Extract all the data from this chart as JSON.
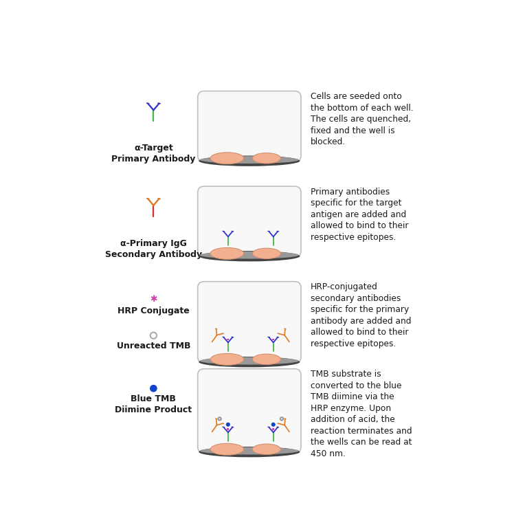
{
  "background_color": "#ffffff",
  "rows": [
    {
      "icon_label": "α-Target\nPrimary Antibody",
      "description": "Cells are seeded onto\nthe bottom of each well.\nThe cells are quenched,\nfixed and the well is\nblocked.",
      "well_content": "cells_only"
    },
    {
      "icon_label": "α-Primary IgG\nSecondary Antibody",
      "description": "Primary antibodies\nspecific for the target\nantigen are added and\nallowed to bind to their\nrespective epitopes.",
      "well_content": "primary_antibody"
    },
    {
      "icon_label_1": "HRP Conjugate",
      "icon_label_2": "Unreacted TMB",
      "description": "HRP-conjugated\nsecondary antibodies\nspecific for the primary\nantibody are added and\nallowed to bind to their\nrespective epitopes.",
      "well_content": "hrp_conjugate"
    },
    {
      "icon_label_1": "Blue TMB\nDiimine Product",
      "description": "TMB substrate is\nconverted to the blue\nTMB diimine via the\nHRP enzyme. Upon\naddition of acid, the\nreaction terminates and\nthe wells can be read at\n450 nm.",
      "well_content": "blue_tmb"
    }
  ],
  "well_bg": "#f8f8f8",
  "well_border": "#c0c0c0",
  "well_bottom_dark": "#444444",
  "well_bottom_light": "#999999",
  "cell_color": "#f2b090",
  "cell_edge": "#d09070",
  "ab_green": "#44bb44",
  "ab_blue": "#3333cc",
  "ab_orange": "#e07820",
  "ab_red": "#cc3333",
  "hrp_pink": "#cc44aa",
  "tmb_blue": "#1144cc",
  "tmb_ring": "#999999"
}
